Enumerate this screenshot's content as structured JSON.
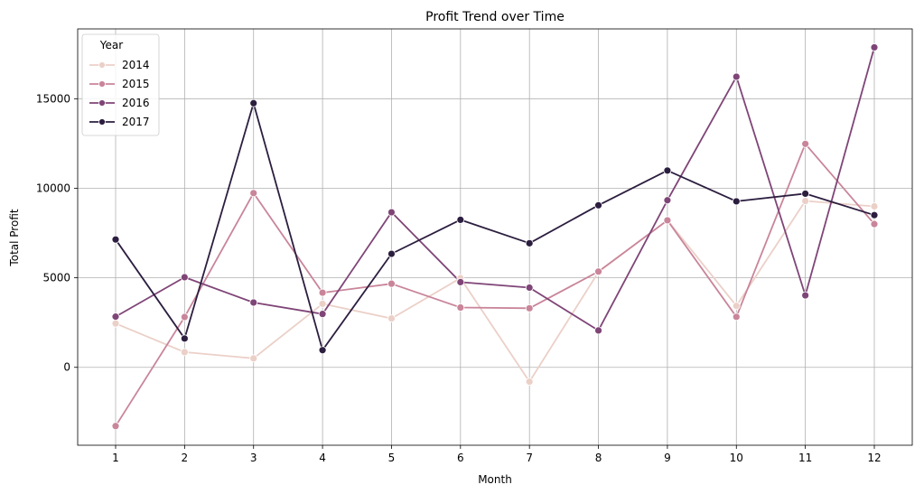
{
  "chart_data": {
    "type": "line",
    "title": "Profit Trend over Time",
    "xlabel": "Month",
    "ylabel": "Total Profit",
    "x": [
      1,
      2,
      3,
      4,
      5,
      6,
      7,
      8,
      9,
      10,
      11,
      12
    ],
    "xlim": [
      0.45,
      12.55
    ],
    "ylim": [
      -4350,
      18900
    ],
    "yticks": [
      0,
      5000,
      10000,
      15000
    ],
    "grid": true,
    "legend": {
      "title": "Year",
      "placement": "top-left"
    },
    "series": [
      {
        "name": "2014",
        "color": "#ebd0c8",
        "values": [
          2450,
          850,
          500,
          3550,
          2730,
          4980,
          -800,
          5320,
          8220,
          3430,
          9290,
          8990
        ]
      },
      {
        "name": "2015",
        "color": "#c9859a",
        "values": [
          -3280,
          2810,
          9730,
          4170,
          4670,
          3340,
          3300,
          5350,
          8210,
          2820,
          12480,
          8000
        ]
      },
      {
        "name": "2016",
        "color": "#7f4577",
        "values": [
          2830,
          5030,
          3620,
          2980,
          8660,
          4760,
          4450,
          2060,
          9330,
          16230,
          4020,
          17870
        ]
      },
      {
        "name": "2017",
        "color": "#2c1e3f",
        "values": [
          7140,
          1610,
          14750,
          960,
          6340,
          8240,
          6930,
          9050,
          10990,
          9270,
          9700,
          8500
        ]
      }
    ]
  }
}
